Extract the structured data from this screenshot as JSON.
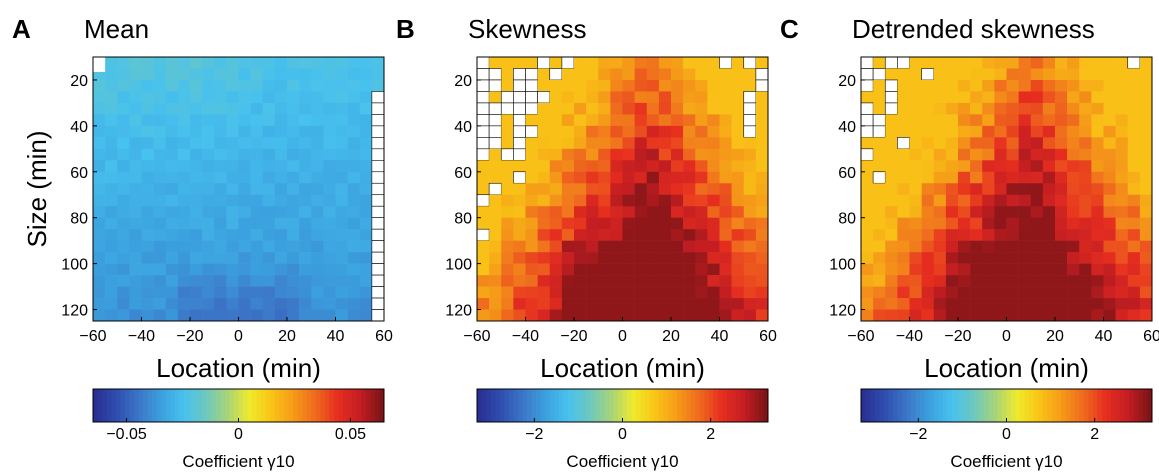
{
  "axes": {
    "xlabel": "Location (min)",
    "ylabel": "Size (min)",
    "x_ticks": [
      "−60",
      "−40",
      "−20",
      "0",
      "20",
      "40",
      "60"
    ],
    "y_ticks": [
      "20",
      "40",
      "60",
      "80",
      "100",
      "120"
    ]
  },
  "colorbar_label": "Coefficient γ10",
  "colors": {
    "colormap": [
      "#2a2f93",
      "#2f4fb0",
      "#3c77c8",
      "#3ba0de",
      "#47c1ee",
      "#6cc7c0",
      "#a8d47a",
      "#f0e92b",
      "#f9c417",
      "#f59a18",
      "#ef6a1e",
      "#e62e1f",
      "#c41e22",
      "#7e1416"
    ],
    "empty_cell": "#ffffff",
    "grid": "#000000"
  },
  "chart_data": [
    {
      "panel_letter": "A",
      "title": "Mean",
      "type": "heatmap",
      "x_range": [
        -60,
        60
      ],
      "y_range": [
        10,
        125
      ],
      "colorbar": {
        "range": [
          -0.065,
          0.065
        ],
        "ticks": [
          "−0.05",
          "0",
          "0.05"
        ]
      },
      "pattern": "diagonal",
      "description_values": {
        "top_left": -0.035,
        "band_center": -0.05,
        "bottom_center": -0.063
      }
    },
    {
      "panel_letter": "B",
      "title": "Skewness",
      "type": "heatmap",
      "x_range": [
        -60,
        60
      ],
      "y_range": [
        10,
        125
      ],
      "colorbar": {
        "range": [
          -3.3,
          3.3
        ],
        "ticks": [
          "−2",
          "0",
          "2"
        ]
      },
      "pattern": "diagonal-sparse"
    },
    {
      "panel_letter": "C",
      "title": "Detrended skewness",
      "type": "heatmap",
      "x_range": [
        -60,
        60
      ],
      "y_range": [
        10,
        125
      ],
      "colorbar": {
        "range": [
          -3.3,
          3.3
        ],
        "ticks": [
          "−2",
          "0",
          "2"
        ]
      },
      "pattern": "diagonal-dense"
    }
  ]
}
